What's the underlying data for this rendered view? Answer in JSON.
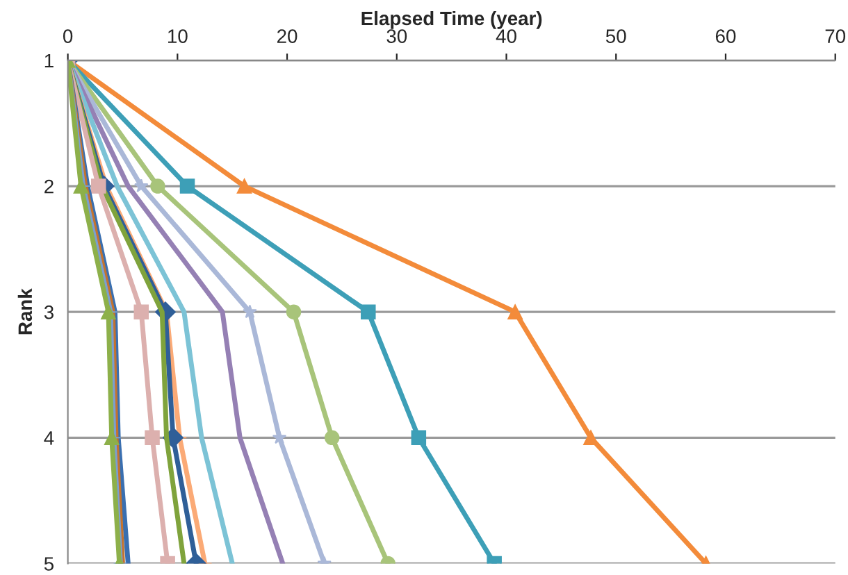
{
  "chart_data": {
    "type": "line",
    "xlabel": "Elapsed Time (year)",
    "ylabel": "Rank",
    "xlim": [
      0,
      70
    ],
    "xticks": [
      0,
      10,
      20,
      30,
      40,
      50,
      60,
      70
    ],
    "ylim": [
      5,
      1
    ],
    "yticks": [
      1,
      2,
      3,
      4,
      5
    ],
    "grid": "y",
    "legend": false,
    "line_style": "solid",
    "series": [
      {
        "color": "#f38b3a",
        "marker": "triangle",
        "x": [
          0,
          16.1,
          40.8,
          47.7,
          58.2
        ],
        "values": [
          1,
          2,
          3,
          4,
          5
        ]
      },
      {
        "color": "#3d9fb7",
        "marker": "square",
        "x": [
          0,
          10.9,
          27.4,
          32.0,
          38.9
        ],
        "values": [
          1,
          2,
          3,
          4,
          5
        ]
      },
      {
        "color": "#a8c47a",
        "marker": "circle",
        "x": [
          0,
          8.2,
          20.6,
          24.1,
          29.2
        ],
        "values": [
          1,
          2,
          3,
          4,
          5
        ]
      },
      {
        "color": "#aab8d8",
        "marker": "star",
        "x": [
          0,
          6.7,
          16.6,
          19.3,
          23.4
        ],
        "values": [
          1,
          2,
          3,
          4,
          5
        ]
      },
      {
        "color": "#9580b4",
        "marker": "none",
        "x": [
          0,
          5.5,
          14.1,
          15.7,
          19.6
        ],
        "values": [
          1,
          2,
          3,
          4,
          5
        ]
      },
      {
        "color": "#7cc3d6",
        "marker": "none",
        "x": [
          0,
          4.5,
          10.6,
          12.2,
          15.0
        ],
        "values": [
          1,
          2,
          3,
          4,
          5
        ]
      },
      {
        "color": "#fbaa76",
        "marker": "cross",
        "x": [
          0,
          3.5,
          9.0,
          10.2,
          12.5
        ],
        "values": [
          1,
          2,
          3,
          4,
          5
        ]
      },
      {
        "color": "#2f5f98",
        "marker": "diamond",
        "x": [
          0,
          3.3,
          8.9,
          9.6,
          11.7
        ],
        "values": [
          1,
          2,
          3,
          4,
          5
        ]
      },
      {
        "color": "#7fa33c",
        "marker": "none",
        "x": [
          0,
          3.1,
          8.6,
          9.0,
          10.6
        ],
        "values": [
          1,
          2,
          3,
          4,
          5
        ]
      },
      {
        "color": "#dcb0ae",
        "marker": "square",
        "x": [
          0,
          2.8,
          6.7,
          7.7,
          9.1
        ],
        "values": [
          1,
          2,
          3,
          4,
          5
        ]
      },
      {
        "color": "#3a6fb0",
        "marker": "none",
        "x": [
          0,
          1.8,
          4.3,
          4.6,
          5.5
        ],
        "values": [
          1,
          2,
          3,
          4,
          5
        ]
      },
      {
        "color": "#c4732e",
        "marker": "none",
        "x": [
          0,
          1.6,
          4.1,
          4.4,
          5.0
        ],
        "values": [
          1,
          2,
          3,
          4,
          5
        ]
      },
      {
        "color": "#7b9fd0",
        "marker": "cross",
        "x": [
          0,
          1.4,
          3.9,
          4.2,
          4.8
        ],
        "values": [
          1,
          2,
          3,
          4,
          5
        ]
      },
      {
        "color": "#8db04a",
        "marker": "triangle",
        "x": [
          0,
          1.2,
          3.7,
          4.0,
          4.7
        ],
        "values": [
          1,
          2,
          3,
          4,
          5
        ]
      }
    ]
  }
}
